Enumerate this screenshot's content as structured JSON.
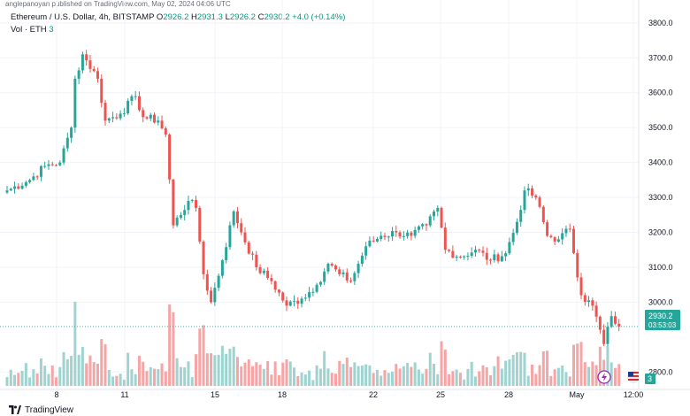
{
  "header": {
    "publisher_line": "anglepanoyan published on TradingView.com, May 02, 2024 04:06 UTC"
  },
  "legend": {
    "symbol": "Ethereum / U.S. Dollar, 4h, BITSTAMP",
    "o_label": "O",
    "o_value": "2926.2",
    "h_label": "H",
    "h_value": "2931.3",
    "l_label": "L",
    "l_value": "2926.2",
    "c_label": "C",
    "c_value": "2930.2",
    "change": "+4.0 (+0.14%)",
    "vol_label": "Vol · ETH",
    "vol_value": "3"
  },
  "price_badge": {
    "price": "2930.2",
    "countdown": "03:53:03"
  },
  "vol_badge": {
    "value": "3"
  },
  "footer": {
    "brand": "TradingView"
  },
  "colors": {
    "up": "#26a69a",
    "down": "#ef5350",
    "vol_up": "#9fd3cf",
    "vol_down": "#f5a5a5",
    "grid": "#f0f3fa",
    "price_line": "#26a69a"
  },
  "chart_data": {
    "type": "candlestick",
    "timeframe": "4h",
    "ylim": [
      2750,
      3830
    ],
    "y_ticks": [
      2800,
      3000,
      3100,
      3200,
      3300,
      3400,
      3500,
      3600,
      3700,
      3800
    ],
    "x_ticks": [
      "8",
      "11",
      "15",
      "18",
      "22",
      "25",
      "28",
      "May",
      "12:00"
    ],
    "current_price": 2930.2,
    "ohlc_anchors": [
      {
        "i": 0,
        "c": 3320
      },
      {
        "i": 6,
        "c": 3350
      },
      {
        "i": 10,
        "c": 3390
      },
      {
        "i": 14,
        "c": 3400
      },
      {
        "i": 17,
        "c": 3500
      },
      {
        "i": 18,
        "c": 3640
      },
      {
        "i": 20,
        "c": 3710
      },
      {
        "i": 24,
        "c": 3640
      },
      {
        "i": 26,
        "c": 3520
      },
      {
        "i": 30,
        "c": 3540
      },
      {
        "i": 34,
        "c": 3590
      },
      {
        "i": 36,
        "c": 3530
      },
      {
        "i": 40,
        "c": 3520
      },
      {
        "i": 42,
        "c": 3480
      },
      {
        "i": 44,
        "c": 3220
      },
      {
        "i": 48,
        "c": 3290
      },
      {
        "i": 50,
        "c": 3270
      },
      {
        "i": 52,
        "c": 3080
      },
      {
        "i": 54,
        "c": 3000
      },
      {
        "i": 57,
        "c": 3120
      },
      {
        "i": 60,
        "c": 3260
      },
      {
        "i": 62,
        "c": 3200
      },
      {
        "i": 66,
        "c": 3100
      },
      {
        "i": 70,
        "c": 3060
      },
      {
        "i": 74,
        "c": 2990
      },
      {
        "i": 78,
        "c": 3010
      },
      {
        "i": 82,
        "c": 3050
      },
      {
        "i": 85,
        "c": 3110
      },
      {
        "i": 88,
        "c": 3080
      },
      {
        "i": 91,
        "c": 3060
      },
      {
        "i": 95,
        "c": 3160
      },
      {
        "i": 99,
        "c": 3190
      },
      {
        "i": 103,
        "c": 3200
      },
      {
        "i": 107,
        "c": 3190
      },
      {
        "i": 111,
        "c": 3220
      },
      {
        "i": 114,
        "c": 3270
      },
      {
        "i": 116,
        "c": 3150
      },
      {
        "i": 120,
        "c": 3130
      },
      {
        "i": 124,
        "c": 3150
      },
      {
        "i": 128,
        "c": 3120
      },
      {
        "i": 132,
        "c": 3140
      },
      {
        "i": 135,
        "c": 3230
      },
      {
        "i": 137,
        "c": 3320
      },
      {
        "i": 140,
        "c": 3300
      },
      {
        "i": 143,
        "c": 3190
      },
      {
        "i": 146,
        "c": 3180
      },
      {
        "i": 149,
        "c": 3210
      },
      {
        "i": 152,
        "c": 3020
      },
      {
        "i": 155,
        "c": 2990
      },
      {
        "i": 158,
        "c": 2880
      },
      {
        "i": 160,
        "c": 2960
      },
      {
        "i": 162,
        "c": 2930
      }
    ],
    "candle_count": 163
  }
}
